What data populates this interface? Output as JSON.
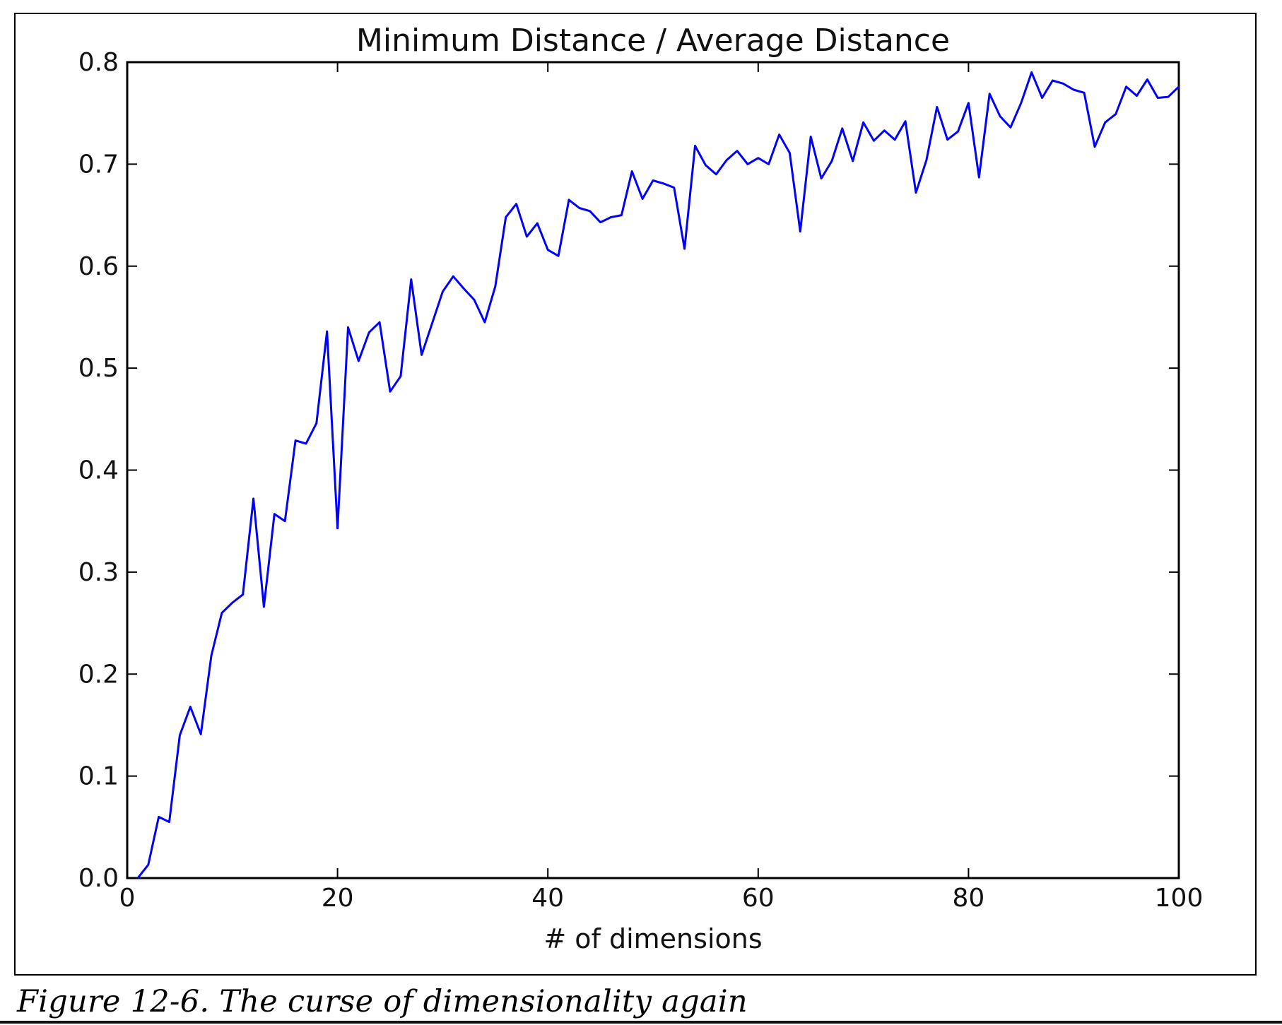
{
  "chart_data": {
    "type": "line",
    "title": "Minimum Distance / Average Distance",
    "xlabel": "# of dimensions",
    "ylabel": "",
    "xlim": [
      0,
      100
    ],
    "ylim": [
      0,
      0.8
    ],
    "xticks": [
      "0",
      "20",
      "40",
      "60",
      "80",
      "100"
    ],
    "yticks": [
      "0.0",
      "0.1",
      "0.2",
      "0.3",
      "0.4",
      "0.5",
      "0.6",
      "0.7",
      "0.8"
    ],
    "grid": false,
    "legend": "none",
    "series": [
      {
        "color": "#0000ff",
        "x": [
          1,
          2,
          3,
          4,
          5,
          6,
          7,
          8,
          9,
          10,
          11,
          12,
          13,
          14,
          15,
          16,
          17,
          18,
          19,
          20,
          21,
          22,
          23,
          24,
          25,
          26,
          27,
          28,
          29,
          30,
          31,
          32,
          33,
          34,
          35,
          36,
          37,
          38,
          39,
          40,
          41,
          42,
          43,
          44,
          45,
          46,
          47,
          48,
          49,
          50,
          51,
          52,
          53,
          54,
          55,
          56,
          57,
          58,
          59,
          60,
          61,
          62,
          63,
          64,
          65,
          66,
          67,
          68,
          69,
          70,
          71,
          72,
          73,
          74,
          75,
          76,
          77,
          78,
          79,
          80,
          81,
          82,
          83,
          84,
          85,
          86,
          87,
          88,
          89,
          90,
          91,
          92,
          93,
          94,
          95,
          96,
          97,
          98,
          99,
          100
        ],
        "y": [
          0.0,
          0.013,
          0.06,
          0.055,
          0.14,
          0.168,
          0.141,
          0.218,
          0.26,
          0.27,
          0.278,
          0.372,
          0.266,
          0.357,
          0.35,
          0.429,
          0.426,
          0.446,
          0.536,
          0.343,
          0.54,
          0.507,
          0.535,
          0.545,
          0.477,
          0.492,
          0.587,
          0.513,
          0.544,
          0.575,
          0.59,
          0.578,
          0.567,
          0.545,
          0.58,
          0.648,
          0.661,
          0.629,
          0.642,
          0.616,
          0.61,
          0.665,
          0.657,
          0.654,
          0.643,
          0.648,
          0.65,
          0.693,
          0.666,
          0.684,
          0.681,
          0.677,
          0.617,
          0.718,
          0.699,
          0.69,
          0.704,
          0.713,
          0.7,
          0.706,
          0.7,
          0.729,
          0.711,
          0.634,
          0.727,
          0.686,
          0.703,
          0.735,
          0.703,
          0.741,
          0.723,
          0.733,
          0.724,
          0.742,
          0.672,
          0.704,
          0.756,
          0.724,
          0.732,
          0.76,
          0.687,
          0.769,
          0.747,
          0.736,
          0.76,
          0.79,
          0.765,
          0.782,
          0.779,
          0.773,
          0.77,
          0.717,
          0.741,
          0.749,
          0.776,
          0.767,
          0.783,
          0.765,
          0.766,
          0.776
        ]
      }
    ]
  },
  "caption": "Figure 12-6. The curse of dimensionality again"
}
